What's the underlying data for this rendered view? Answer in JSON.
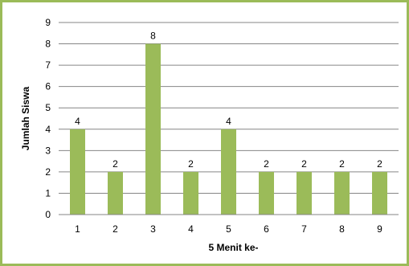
{
  "chart_data": {
    "type": "bar",
    "categories": [
      "1",
      "2",
      "3",
      "4",
      "5",
      "6",
      "7",
      "8",
      "9"
    ],
    "values": [
      4,
      2,
      8,
      2,
      4,
      2,
      2,
      2,
      2
    ],
    "title": "",
    "xlabel": "5 Menit ke-",
    "ylabel": "Jumlah Siswa",
    "ylim": [
      0,
      9
    ],
    "yticks": [
      "0",
      "1",
      "2",
      "3",
      "4",
      "5",
      "6",
      "7",
      "8",
      "9"
    ],
    "grid": true,
    "legend": "none",
    "data_labels": true,
    "bar_color": "#9bbb59",
    "border_color": "#9bbb59",
    "gridline_color": "#868686"
  }
}
